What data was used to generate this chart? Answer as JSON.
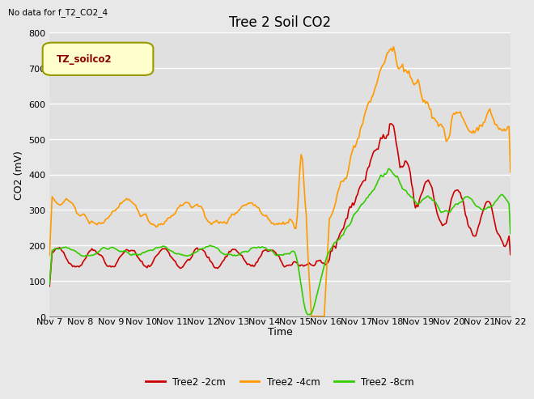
{
  "title": "Tree 2 Soil CO2",
  "subtitle": "No data for f_T2_CO2_4",
  "ylabel": "CO2 (mV)",
  "xlabel": "Time",
  "legend_box_label": "TZ_soilco2",
  "ylim": [
    0,
    800
  ],
  "yticks": [
    0,
    100,
    200,
    300,
    400,
    500,
    600,
    700,
    800
  ],
  "xtick_labels": [
    "Nov 7",
    "Nov 8",
    "Nov 9",
    "Nov 10",
    "Nov 11",
    "Nov 12",
    "Nov 13",
    "Nov 14",
    "Nov 15",
    "Nov 16",
    "Nov 17",
    "Nov 18",
    "Nov 19",
    "Nov 20",
    "Nov 21",
    "Nov 22"
  ],
  "series": {
    "Tree2 -2cm": {
      "color": "#cc0000",
      "linewidth": 1.2
    },
    "Tree2 -4cm": {
      "color": "#ff9900",
      "linewidth": 1.2
    },
    "Tree2 -8cm": {
      "color": "#33cc00",
      "linewidth": 1.2
    }
  },
  "bg_color": "#e8e8e8",
  "plot_bg_color": "#e0e0e0",
  "grid_color": "#ffffff",
  "title_fontsize": 12,
  "axis_fontsize": 9,
  "tick_fontsize": 8
}
